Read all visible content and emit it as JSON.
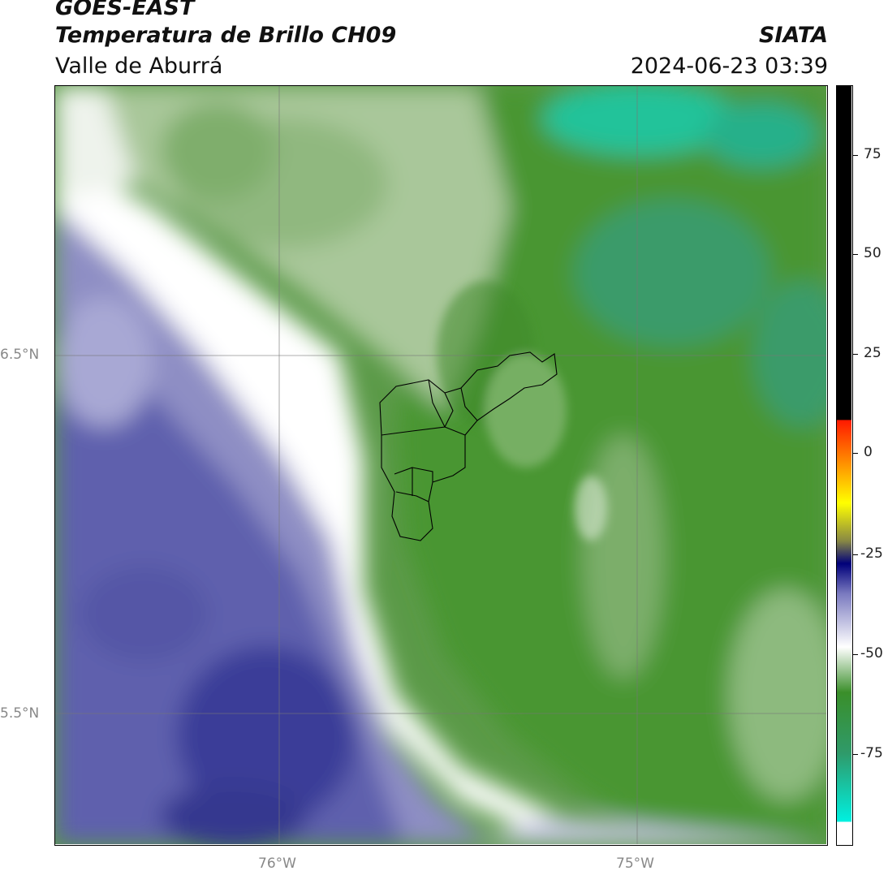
{
  "header": {
    "satellite": "GOES-EAST",
    "product": "Temperatura de Brillo CH09",
    "region": "Valle de Aburrá",
    "brand": "SIATA",
    "datetime": "2024-06-23 03:39"
  },
  "axes": {
    "lat_labels": [
      "6.5°N",
      "5.5°N"
    ],
    "lon_labels": [
      "76°W",
      "75°W"
    ]
  },
  "colorbar": {
    "ticks": [
      "75",
      "50",
      "25",
      "0",
      "-25",
      "-50",
      "-75"
    ],
    "stops": [
      "#000000",
      "#ff0000",
      "#ff8000",
      "#ffff00",
      "#00007a",
      "#ffffff",
      "#3a8f2a",
      "#18e0c8",
      "#ffffff"
    ]
  },
  "map_colors": {
    "cold_cloud": "#2c2f8f",
    "clear": "#ffffff",
    "moist": "#4a9632",
    "very_moist": "#22c39a"
  }
}
